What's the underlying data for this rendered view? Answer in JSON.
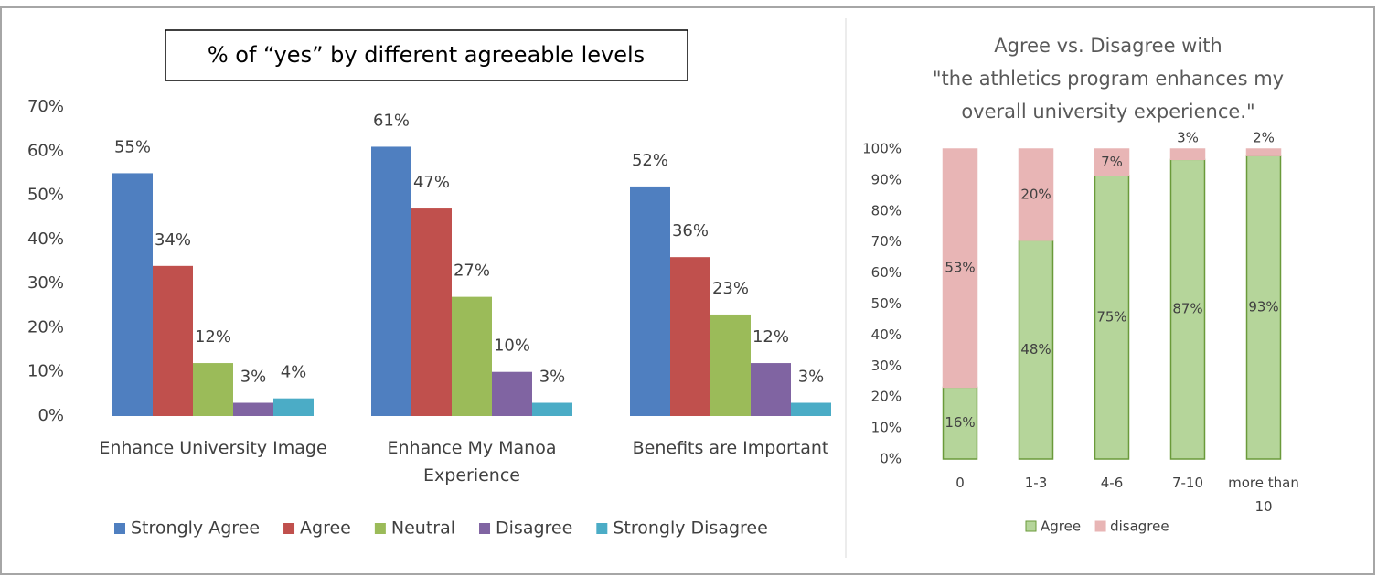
{
  "chart_data": [
    {
      "type": "bar",
      "title": "% of “yes” by different agreeable levels",
      "categories": [
        "Enhance University Image",
        "Enhance My Manoa Experience",
        "Benefits are Important"
      ],
      "series": [
        {
          "name": "Strongly Agree",
          "color": "#4f7fc0",
          "values": [
            55,
            61,
            52
          ],
          "value_labels": [
            "55%",
            "61%",
            "52%"
          ]
        },
        {
          "name": "Agree",
          "color": "#c0504d",
          "values": [
            34,
            47,
            36
          ],
          "value_labels": [
            "34%",
            "47%",
            "36%"
          ]
        },
        {
          "name": "Neutral",
          "color": "#9bbb59",
          "values": [
            12,
            27,
            23
          ],
          "value_labels": [
            "12%",
            "27%",
            "23%"
          ]
        },
        {
          "name": "Disagree",
          "color": "#8064a2",
          "values": [
            3,
            10,
            12
          ],
          "value_labels": [
            "3%",
            "10%",
            "12%"
          ]
        },
        {
          "name": "Strongly Disagree",
          "color": "#4bacc6",
          "values": [
            4,
            3,
            3
          ],
          "value_labels": [
            "4%",
            "3%",
            "3%"
          ]
        }
      ],
      "ylim": [
        0,
        70
      ],
      "yticks": [
        {
          "value": 0,
          "label": "0%"
        },
        {
          "value": 10,
          "label": "10%"
        },
        {
          "value": 20,
          "label": "20%"
        },
        {
          "value": 30,
          "label": "30%"
        },
        {
          "value": 40,
          "label": "40%"
        },
        {
          "value": 50,
          "label": "50%"
        },
        {
          "value": 60,
          "label": "60%"
        },
        {
          "value": 70,
          "label": "70%"
        }
      ],
      "legend": "bottom"
    },
    {
      "type": "stacked_bar",
      "stacking": "percent",
      "title": "Agree vs. Disagree with\n\"the athletics program enhances my\noverall university experience.\"",
      "categories": [
        "0",
        "1-3",
        "4-6",
        "7-10",
        "more than 10"
      ],
      "series": [
        {
          "name": "Agree",
          "color": "#b5d59a",
          "values": [
            16,
            48,
            75,
            87,
            93
          ],
          "value_labels": [
            "16%",
            "48%",
            "75%",
            "87%",
            "93%"
          ]
        },
        {
          "name": "disagree",
          "color": "#e8b5b5",
          "values": [
            53,
            20,
            7,
            3,
            2
          ],
          "value_labels": [
            "53%",
            "20%",
            "7%",
            "3%",
            "2%"
          ]
        }
      ],
      "ylim": [
        0,
        100
      ],
      "yticks": [
        {
          "value": 0,
          "label": "0%"
        },
        {
          "value": 10,
          "label": "10%"
        },
        {
          "value": 20,
          "label": "20%"
        },
        {
          "value": 30,
          "label": "30%"
        },
        {
          "value": 40,
          "label": "40%"
        },
        {
          "value": 50,
          "label": "50%"
        },
        {
          "value": 60,
          "label": "60%"
        },
        {
          "value": 70,
          "label": "70%"
        },
        {
          "value": 80,
          "label": "80%"
        },
        {
          "value": 90,
          "label": "90%"
        },
        {
          "value": 100,
          "label": "100%"
        }
      ],
      "legend": "bottom"
    }
  ]
}
